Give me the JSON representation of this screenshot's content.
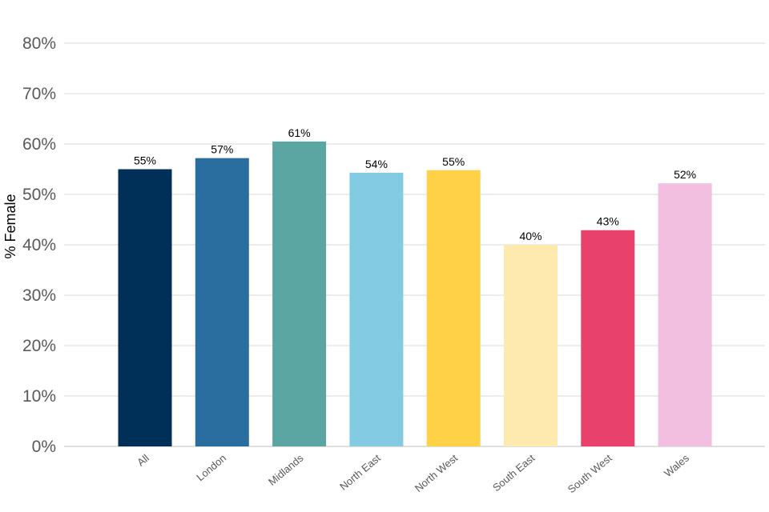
{
  "chart_data": {
    "type": "bar",
    "title": "",
    "xlabel": "",
    "ylabel": "% Female",
    "ylim": [
      0,
      80
    ],
    "yticks": [
      0,
      10,
      20,
      30,
      40,
      50,
      60,
      70,
      80
    ],
    "ytick_labels": [
      "0%",
      "10%",
      "20%",
      "30%",
      "40%",
      "50%",
      "60%",
      "70%",
      "80%"
    ],
    "grid": true,
    "categories": [
      "All",
      "London",
      "Midlands",
      "North East",
      "North West",
      "South East",
      "South West",
      "Wales"
    ],
    "values": [
      55,
      57.2,
      60.5,
      54.3,
      54.8,
      40,
      42.9,
      52.2
    ],
    "data_labels": [
      "55%",
      "57%",
      "61%",
      "54%",
      "55%",
      "40%",
      "43%",
      "52%"
    ],
    "colors": [
      "#003057",
      "#2a6ea0",
      "#5ba5a3",
      "#83cae3",
      "#ffd147",
      "#feeaaf",
      "#e8426c",
      "#f2bfe0"
    ]
  }
}
